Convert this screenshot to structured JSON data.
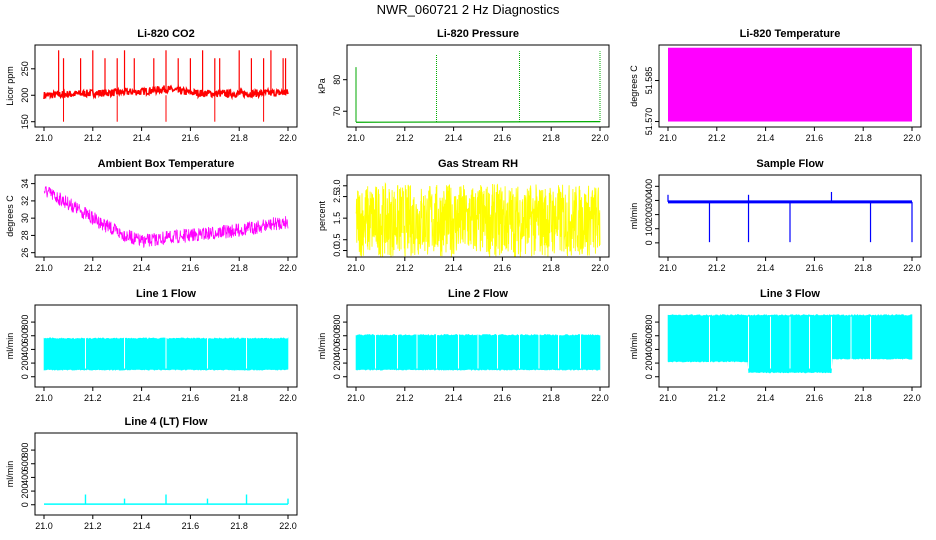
{
  "page_title": "NWR_060721 2 Hz Diagnostics",
  "chart_data": [
    {
      "type": "line",
      "title": "Li-820 CO2",
      "ylabel": "Licor ppm",
      "color": "#ff0000",
      "xlim": [
        21.0,
        22.0
      ],
      "ylim": [
        140,
        295
      ],
      "x_ticks": [
        "21.0",
        "21.2",
        "21.4",
        "21.6",
        "21.8",
        "22.0"
      ],
      "y_ticks": [
        150,
        200,
        250
      ],
      "series": [
        {
          "x": [
            21.0,
            21.1,
            21.2,
            21.3,
            21.4,
            21.5,
            21.6,
            21.7,
            21.8,
            21.9,
            22.0
          ],
          "values": [
            200,
            202,
            204,
            205,
            207,
            212,
            205,
            203,
            203,
            204,
            205
          ]
        }
      ]
    },
    {
      "type": "line",
      "title": "Li-820 Pressure",
      "ylabel": "kPa",
      "color": "#00aa00",
      "xlim": [
        21.0,
        22.0
      ],
      "ylim": [
        65,
        91
      ],
      "x_ticks": [
        "21.0",
        "21.2",
        "21.4",
        "21.6",
        "21.8",
        "22.0"
      ],
      "y_ticks": [
        70,
        80
      ],
      "series": [
        {
          "x": [
            21.0,
            21.2,
            21.4,
            21.6,
            21.8,
            22.0
          ],
          "values": [
            66.5,
            66.5,
            66.6,
            66.6,
            66.7,
            66.7
          ]
        }
      ]
    },
    {
      "type": "area",
      "title": "Li-820 Temperature",
      "ylabel": "degrees C",
      "color": "#ff00ff",
      "xlim": [
        21.0,
        22.0
      ],
      "ylim": [
        51.568,
        51.598
      ],
      "x_ticks": [
        "21.0",
        "21.2",
        "21.4",
        "21.6",
        "21.8",
        "22.0"
      ],
      "y_ticks": [
        "51.570",
        "51.585"
      ],
      "series": [
        {
          "x": [
            21.0,
            22.0
          ],
          "values": [
            51.597,
            51.597
          ]
        }
      ]
    },
    {
      "type": "line",
      "title": "Ambient Box Temperature",
      "ylabel": "degrees C",
      "color": "#ff00ff",
      "xlim": [
        21.0,
        22.0
      ],
      "ylim": [
        25.5,
        35
      ],
      "x_ticks": [
        "21.0",
        "21.2",
        "21.4",
        "21.6",
        "21.8",
        "22.0"
      ],
      "y_ticks": [
        26,
        28,
        30,
        32,
        34
      ],
      "series": [
        {
          "x": [
            21.0,
            21.1,
            21.2,
            21.3,
            21.4,
            21.5,
            21.6,
            21.7,
            21.8,
            21.9,
            22.0
          ],
          "values": [
            34,
            32.5,
            30.8,
            29.2,
            28.1,
            28.5,
            28.8,
            29.1,
            29.4,
            29.9,
            30.4
          ]
        }
      ]
    },
    {
      "type": "area",
      "title": "Gas Stream RH",
      "ylabel": "percent",
      "color": "#ffff00",
      "xlim": [
        21.0,
        22.0
      ],
      "ylim": [
        -0.3,
        3.5
      ],
      "x_ticks": [
        "21.0",
        "21.2",
        "21.4",
        "21.6",
        "21.8",
        "22.0"
      ],
      "y_ticks": [
        "0.0",
        "0.5",
        "1.5",
        "2.5",
        "3.0"
      ],
      "series": [
        {
          "name": "upper",
          "x": [
            21.0,
            22.0
          ],
          "values": [
            3.0,
            3.0
          ]
        },
        {
          "name": "lower",
          "x": [
            21.0,
            22.0
          ],
          "values": [
            0.0,
            0.0
          ]
        }
      ]
    },
    {
      "type": "line",
      "title": "Sample Flow",
      "ylabel": "ml/min",
      "color": "#0000ff",
      "xlim": [
        21.0,
        22.0
      ],
      "ylim": [
        -100,
        480
      ],
      "x_ticks": [
        "21.0",
        "21.2",
        "21.4",
        "21.6",
        "21.8",
        "22.0"
      ],
      "y_ticks": [
        0,
        100,
        200,
        300,
        400
      ],
      "series": [
        {
          "x": [
            21.0,
            22.0
          ],
          "values": [
            290,
            290
          ]
        }
      ]
    },
    {
      "type": "area",
      "title": "Line 1 Flow",
      "ylabel": "ml/min",
      "color": "#00ffff",
      "xlim": [
        21.0,
        22.0
      ],
      "ylim": [
        -150,
        1050
      ],
      "x_ticks": [
        "21.0",
        "21.2",
        "21.4",
        "21.6",
        "21.8",
        "22.0"
      ],
      "y_ticks": [
        0,
        200,
        400,
        600,
        800
      ],
      "series": [
        {
          "name": "upper",
          "x": [
            21.0,
            22.0
          ],
          "values": [
            560,
            560
          ]
        },
        {
          "name": "lower",
          "x": [
            21.0,
            22.0
          ],
          "values": [
            100,
            100
          ]
        }
      ]
    },
    {
      "type": "area",
      "title": "Line 2 Flow",
      "ylabel": "ml/min",
      "color": "#00ffff",
      "xlim": [
        21.0,
        22.0
      ],
      "ylim": [
        -150,
        1050
      ],
      "x_ticks": [
        "21.0",
        "21.2",
        "21.4",
        "21.6",
        "21.8",
        "22.0"
      ],
      "y_ticks": [
        0,
        200,
        400,
        600,
        800
      ],
      "series": [
        {
          "name": "upper",
          "x": [
            21.0,
            22.0
          ],
          "values": [
            610,
            610
          ]
        },
        {
          "name": "lower",
          "x": [
            21.0,
            22.0
          ],
          "values": [
            100,
            100
          ]
        }
      ]
    },
    {
      "type": "area",
      "title": "Line 3 Flow",
      "ylabel": "ml/min",
      "color": "#00ffff",
      "xlim": [
        21.0,
        22.0
      ],
      "ylim": [
        -150,
        1050
      ],
      "x_ticks": [
        "21.0",
        "21.2",
        "21.4",
        "21.6",
        "21.8",
        "22.0"
      ],
      "y_ticks": [
        0,
        200,
        400,
        600,
        800
      ],
      "series": [
        {
          "name": "upper",
          "x": [
            21.0,
            22.0
          ],
          "values": [
            900,
            900
          ]
        },
        {
          "name": "lower",
          "x": [
            21.0,
            21.33,
            21.33,
            21.67,
            21.67,
            22.0
          ],
          "values": [
            220,
            220,
            60,
            60,
            260,
            260
          ]
        }
      ]
    },
    {
      "type": "line",
      "title": "Line 4 (LT) Flow",
      "ylabel": "ml/min",
      "color": "#00ffff",
      "xlim": [
        21.0,
        22.0
      ],
      "ylim": [
        -150,
        1050
      ],
      "x_ticks": [
        "21.0",
        "21.2",
        "21.4",
        "21.6",
        "21.8",
        "22.0"
      ],
      "y_ticks": [
        0,
        200,
        400,
        600,
        800
      ],
      "series": [
        {
          "x": [
            21.0,
            22.0
          ],
          "values": [
            10,
            10
          ]
        }
      ]
    }
  ]
}
